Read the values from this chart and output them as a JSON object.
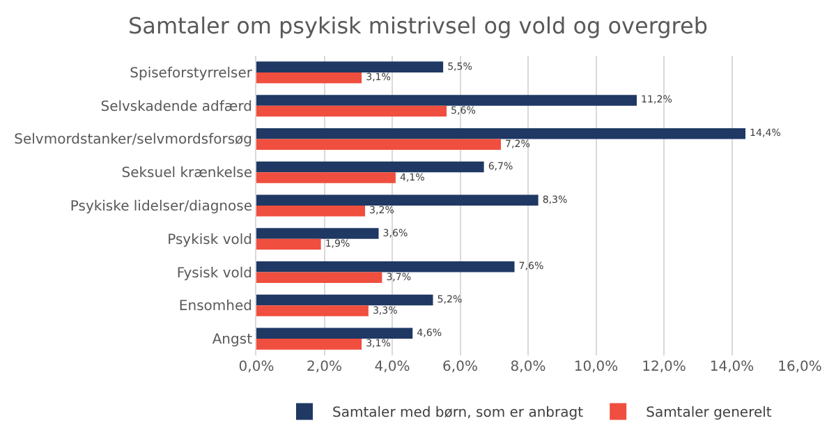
{
  "chart_data": {
    "type": "bar",
    "orientation": "horizontal",
    "title": "Samtaler om psykisk mistrivsel og vold og overgreb",
    "categories": [
      "Spiseforstyrrelser",
      "Selvskadende adfærd",
      "Selvmordstanker/selvmordsforsøg",
      "Seksuel krænkelse",
      "Psykiske lidelser/diagnose",
      "Psykisk vold",
      "Fysisk vold",
      "Ensomhed",
      "Angst"
    ],
    "series": [
      {
        "name": "Samtaler med børn, som er anbragt",
        "color": "#1f3864",
        "values": [
          5.5,
          11.2,
          14.4,
          6.7,
          8.3,
          3.6,
          7.6,
          5.2,
          4.6
        ],
        "value_labels": [
          "5,5%",
          "11,2%",
          "14,4%",
          "6,7%",
          "8,3%",
          "3,6%",
          "7,6%",
          "5,2%",
          "4,6%"
        ]
      },
      {
        "name": "Samtaler generelt",
        "color": "#f04e3e",
        "values": [
          3.1,
          5.6,
          7.2,
          4.1,
          3.2,
          1.9,
          3.7,
          3.3,
          3.1
        ],
        "value_labels": [
          "3,1%",
          "5,6%",
          "7,2%",
          "4,1%",
          "3,2%",
          "1,9%",
          "3,7%",
          "3,3%",
          "3,1%"
        ]
      }
    ],
    "xlim": [
      0,
      16
    ],
    "xticks": [
      {
        "value": 0,
        "label": "0,0%"
      },
      {
        "value": 2,
        "label": "2,0%"
      },
      {
        "value": 4,
        "label": "4,0%"
      },
      {
        "value": 6,
        "label": "6,0%"
      },
      {
        "value": 8,
        "label": "8,0%"
      },
      {
        "value": 10,
        "label": "10,0%"
      },
      {
        "value": 12,
        "label": "12,0%"
      },
      {
        "value": 14,
        "label": "14,0%"
      },
      {
        "value": 16,
        "label": "16,0%"
      }
    ],
    "grid": "x",
    "legend": "bottom"
  }
}
